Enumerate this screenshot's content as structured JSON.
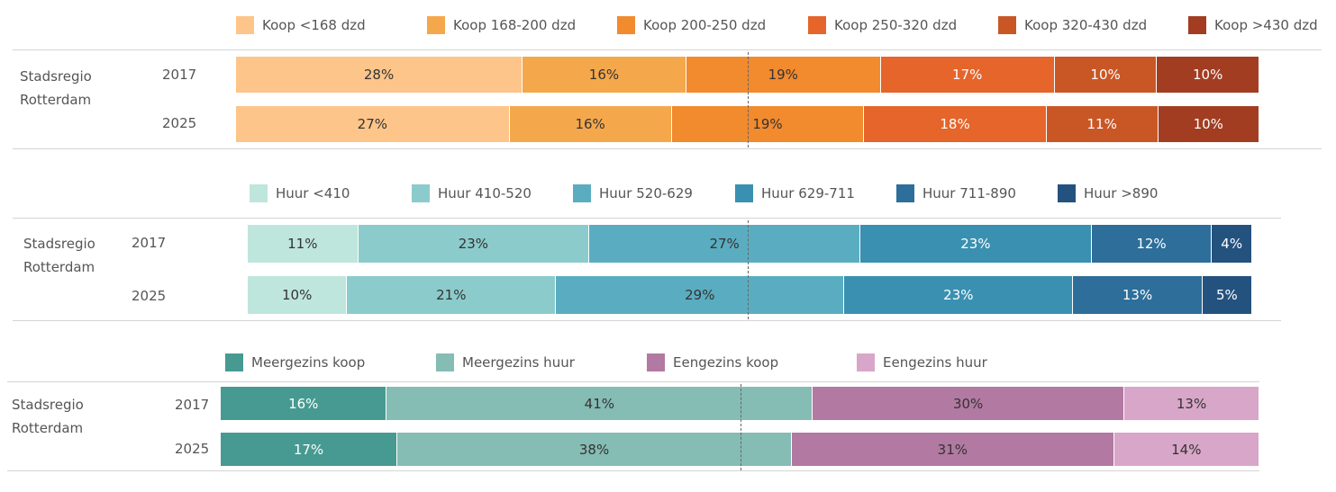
{
  "chart_data": [
    {
      "type": "bar",
      "stacked": true,
      "orientation": "horizontal",
      "region_label": "Stadsregio Rotterdam",
      "categories": [
        "2017",
        "2025"
      ],
      "series": [
        {
          "name": "Koop <168 dzd",
          "color": "#fdc58a",
          "values": [
            28,
            27
          ]
        },
        {
          "name": "Koop 168-200 dzd",
          "color": "#f5a84b",
          "values": [
            16,
            16
          ]
        },
        {
          "name": "Koop 200-250 dzd",
          "color": "#f28a2e",
          "values": [
            19,
            19
          ]
        },
        {
          "name": "Koop 250-320 dzd",
          "color": "#e5652b",
          "values": [
            17,
            18
          ]
        },
        {
          "name": "Koop 320-430 dzd",
          "color": "#c95726",
          "values": [
            10,
            11
          ]
        },
        {
          "name": "Koop >430 dzd",
          "color": "#a23d22",
          "values": [
            10,
            10
          ]
        }
      ],
      "labels": [
        [
          "28%",
          "16%",
          "19%",
          "17%",
          "10%",
          "10%"
        ],
        [
          "27%",
          "16%",
          "19%",
          "18%",
          "11%",
          "10%"
        ]
      ]
    },
    {
      "type": "bar",
      "stacked": true,
      "orientation": "horizontal",
      "region_label": "Stadsregio Rotterdam",
      "categories": [
        "2017",
        "2025"
      ],
      "series": [
        {
          "name": "Huur <410",
          "color": "#bfe6dc",
          "values": [
            11,
            10
          ]
        },
        {
          "name": "Huur 410-520",
          "color": "#8ccbcb",
          "values": [
            23,
            21
          ]
        },
        {
          "name": "Huur 520-629",
          "color": "#5aadc0",
          "values": [
            27,
            29
          ]
        },
        {
          "name": "Huur 629-711",
          "color": "#3a90b0",
          "values": [
            23,
            23
          ]
        },
        {
          "name": "Huur 711-890",
          "color": "#2d6e9a",
          "values": [
            12,
            13
          ]
        },
        {
          "name": "Huur >890",
          "color": "#24527f",
          "values": [
            4,
            5
          ]
        }
      ],
      "labels": [
        [
          "11%",
          "23%",
          "27%",
          "23%",
          "12%",
          "4%"
        ],
        [
          "10%",
          "21%",
          "29%",
          "23%",
          "13%",
          "5%"
        ]
      ]
    },
    {
      "type": "bar",
      "stacked": true,
      "orientation": "horizontal",
      "region_label": "Stadsregio Rotterdam",
      "categories": [
        "2017",
        "2025"
      ],
      "series": [
        {
          "name": "Meergezins koop",
          "color": "#479a91",
          "values": [
            16,
            17
          ]
        },
        {
          "name": "Meergezins huur",
          "color": "#85bcb4",
          "values": [
            41,
            38
          ]
        },
        {
          "name": "Eengezins koop",
          "color": "#b279a2",
          "values": [
            30,
            31
          ]
        },
        {
          "name": "Eengezins huur",
          "color": "#d8a6c8",
          "values": [
            13,
            14
          ]
        }
      ],
      "labels": [
        [
          "16%",
          "41%",
          "30%",
          "13%"
        ],
        [
          "17%",
          "38%",
          "31%",
          "14%"
        ]
      ]
    }
  ]
}
